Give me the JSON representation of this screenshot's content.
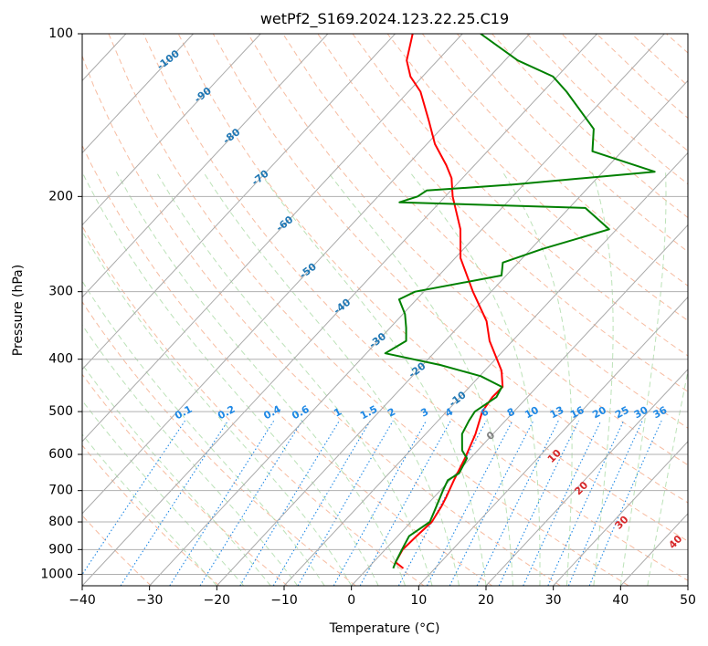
{
  "chart_data": {
    "type": "line",
    "title": "wetPf2_S169.2024.123.22.25.C19",
    "xlabel": "Temperature (°C)",
    "ylabel": "Pressure (hPa)",
    "xlim": [
      -40,
      50
    ],
    "ylim": [
      1050,
      100
    ],
    "yscale": "log",
    "grid": true,
    "x_ticks": [
      "−40",
      "−30",
      "−20",
      "−10",
      "0",
      "10",
      "20",
      "30",
      "40",
      "50"
    ],
    "y_ticks": [
      {
        "p": 100,
        "label": "100"
      },
      {
        "p": 200,
        "label": "200"
      },
      {
        "p": 300,
        "label": "300"
      },
      {
        "p": 400,
        "label": "400"
      },
      {
        "p": 500,
        "label": "500"
      },
      {
        "p": 600,
        "label": "600"
      },
      {
        "p": 700,
        "label": "700"
      },
      {
        "p": 800,
        "label": "800"
      },
      {
        "p": 900,
        "label": "900"
      },
      {
        "p": 1000,
        "label": "1000"
      }
    ],
    "colors": {
      "temperature": "#ff0000",
      "dewpoint": "#008000",
      "isotherm": "#aaaaaa",
      "dry_adiabat": "#f4a582",
      "moist_adiabat": "#a6d8a0",
      "mixing_ratio": "#1e88e5",
      "isotherm_label": "#1f77b4",
      "moist_label": "#d62728",
      "frame_label_gray": "#808080"
    },
    "series": [
      {
        "key": "temperature",
        "points": [
          [
            5.3,
            975
          ],
          [
            3.3,
            950
          ],
          [
            2.6,
            900
          ],
          [
            2.8,
            850
          ],
          [
            3.1,
            800
          ],
          [
            2.4,
            750
          ],
          [
            1.8,
            720
          ],
          [
            0.6,
            670
          ],
          [
            -0.8,
            610
          ],
          [
            -2.6,
            550
          ],
          [
            -4.7,
            500
          ],
          [
            -5.2,
            470
          ],
          [
            -5.1,
            450
          ],
          [
            -7.5,
            420
          ],
          [
            -13.4,
            370
          ],
          [
            -16.6,
            340
          ],
          [
            -22.7,
            300
          ],
          [
            -29.2,
            260
          ],
          [
            -33.2,
            230
          ],
          [
            -38.9,
            200
          ],
          [
            -41.6,
            185
          ],
          [
            -44.2,
            175
          ],
          [
            -48.8,
            160
          ],
          [
            -52.9,
            145
          ],
          [
            -58.2,
            128
          ],
          [
            -61.8,
            120
          ],
          [
            -64.6,
            112
          ],
          [
            -67.4,
            100
          ]
        ]
      },
      {
        "key": "dewpoint",
        "points": [
          [
            3.8,
            975
          ],
          [
            3.3,
            950
          ],
          [
            2.5,
            900
          ],
          [
            1.7,
            850
          ],
          [
            2.8,
            800
          ],
          [
            1.9,
            760
          ],
          [
            0.4,
            700
          ],
          [
            -0.3,
            670
          ],
          [
            0.4,
            650
          ],
          [
            -0.5,
            610
          ],
          [
            -2.3,
            590
          ],
          [
            -4.6,
            550
          ],
          [
            -5.4,
            520
          ],
          [
            -5.8,
            500
          ],
          [
            -4.6,
            470
          ],
          [
            -5.2,
            450
          ],
          [
            -9.8,
            430
          ],
          [
            -17.4,
            410
          ],
          [
            -27.2,
            390
          ],
          [
            -25.8,
            370
          ],
          [
            -27.6,
            350
          ],
          [
            -29.7,
            330
          ],
          [
            -32.6,
            310
          ],
          [
            -31.3,
            300
          ],
          [
            -20.7,
            280
          ],
          [
            -22.3,
            265
          ],
          [
            -18.3,
            250
          ],
          [
            -11.1,
            230
          ],
          [
            -17.6,
            210
          ],
          [
            -46.0,
            205
          ],
          [
            -44.1,
            200
          ],
          [
            -43.6,
            195
          ],
          [
            -31.4,
            190
          ],
          [
            -12.3,
            180
          ],
          [
            -24.4,
            165
          ],
          [
            -27.3,
            150
          ],
          [
            -36.5,
            128
          ],
          [
            -40.6,
            120
          ],
          [
            -48.1,
            112
          ],
          [
            -57.3,
            100
          ]
        ]
      }
    ],
    "isotherm_labels": [
      {
        "t": -100,
        "p": 112,
        "text": "-100"
      },
      {
        "t": -90,
        "p": 130,
        "text": "-90"
      },
      {
        "t": -80,
        "p": 155,
        "text": "-80"
      },
      {
        "t": -70,
        "p": 185,
        "text": "-70"
      },
      {
        "t": -60,
        "p": 225,
        "text": "-60"
      },
      {
        "t": -50,
        "p": 275,
        "text": "-50"
      },
      {
        "t": -40,
        "p": 320,
        "text": "-40"
      },
      {
        "t": -30,
        "p": 370,
        "text": "-30"
      },
      {
        "t": -20,
        "p": 420,
        "text": "-20"
      },
      {
        "t": -10,
        "p": 475,
        "text": "-10"
      },
      {
        "t": 0,
        "p": 555,
        "text": "0"
      }
    ],
    "mixing_ratio_labels": [
      "0.1",
      "0.2",
      "0.4",
      "0.6",
      "1",
      "1.5",
      "2",
      "3",
      "4",
      "6",
      "8",
      "10",
      "13",
      "16",
      "20",
      "25",
      "30",
      "36"
    ],
    "moist_labels": [
      {
        "text": "10",
        "t": 30.5,
        "p": 610
      },
      {
        "text": "20",
        "t": 34.5,
        "p": 700
      },
      {
        "text": "30",
        "t": 40.5,
        "p": 810
      },
      {
        "text": "40",
        "t": 48.5,
        "p": 880
      }
    ]
  }
}
